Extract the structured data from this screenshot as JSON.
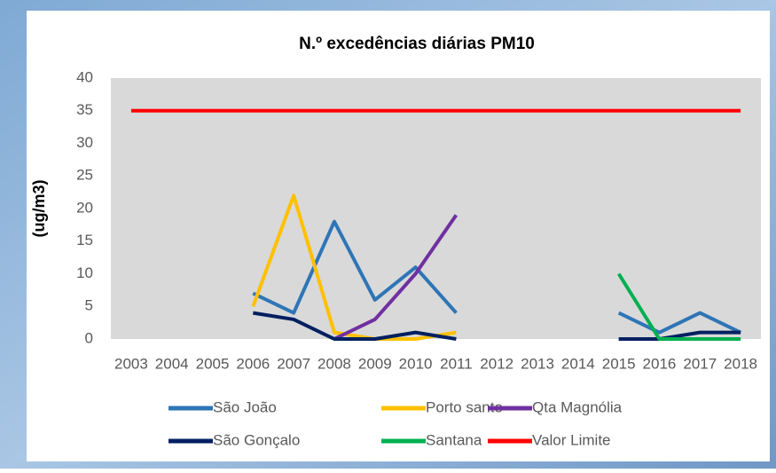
{
  "chart_data": {
    "type": "line",
    "title": "N.º excedências diárias PM10",
    "y_label": "(ug/m3)",
    "categories": [
      "2003",
      "2004",
      "2005",
      "2006",
      "2007",
      "2008",
      "2009",
      "2010",
      "2011",
      "2012",
      "2013",
      "2014",
      "2015",
      "2016",
      "2017",
      "2018"
    ],
    "series": [
      {
        "name": "São João",
        "color": "#2e75b6",
        "values": [
          null,
          null,
          null,
          7,
          4,
          18,
          6,
          11,
          4,
          null,
          null,
          null,
          4,
          1,
          4,
          1
        ]
      },
      {
        "name": "Porto santo",
        "color": "#ffc000",
        "values": [
          null,
          null,
          null,
          5,
          22,
          1,
          0,
          0,
          1,
          null,
          null,
          null,
          null,
          null,
          null,
          null
        ]
      },
      {
        "name": "Qta Magnólia",
        "color": "#7030a0",
        "values": [
          null,
          null,
          null,
          null,
          null,
          0,
          3,
          10,
          19,
          null,
          null,
          null,
          null,
          null,
          null,
          null
        ]
      },
      {
        "name": "São Gonçalo",
        "color": "#002060",
        "values": [
          null,
          null,
          null,
          4,
          3,
          0,
          0,
          1,
          0,
          null,
          null,
          null,
          0,
          0,
          1,
          1
        ]
      },
      {
        "name": "Santana",
        "color": "#00b050",
        "values": [
          null,
          null,
          null,
          null,
          null,
          null,
          null,
          null,
          null,
          null,
          null,
          null,
          10,
          0,
          0,
          0
        ]
      },
      {
        "name": "Valor Limite",
        "color": "#ff0000",
        "values": [
          35,
          35,
          35,
          35,
          35,
          35,
          35,
          35,
          35,
          35,
          35,
          35,
          35,
          35,
          35,
          35
        ]
      }
    ],
    "ylim": [
      0,
      40
    ],
    "yticks": [
      0,
      5,
      10,
      15,
      20,
      25,
      30,
      35,
      40
    ],
    "grid": false,
    "plot_background": "#d9d9d9"
  }
}
